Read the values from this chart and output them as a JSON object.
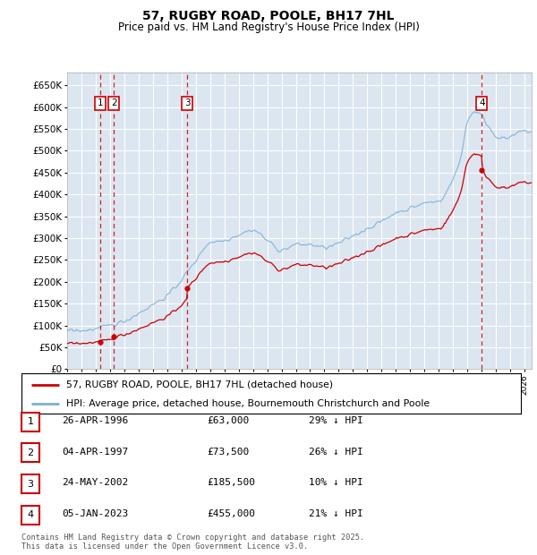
{
  "title": "57, RUGBY ROAD, POOLE, BH17 7HL",
  "subtitle": "Price paid vs. HM Land Registry's House Price Index (HPI)",
  "legend_label_red": "57, RUGBY ROAD, POOLE, BH17 7HL (detached house)",
  "legend_label_blue": "HPI: Average price, detached house, Bournemouth Christchurch and Poole",
  "transactions": [
    {
      "num": 1,
      "date_label": "26-APR-1996",
      "price": 63000,
      "pct": "29% ↓ HPI",
      "year_x": 1996.32
    },
    {
      "num": 2,
      "date_label": "04-APR-1997",
      "price": 73500,
      "pct": "26% ↓ HPI",
      "year_x": 1997.27
    },
    {
      "num": 3,
      "date_label": "24-MAY-2002",
      "price": 185500,
      "pct": "10% ↓ HPI",
      "year_x": 2002.4
    },
    {
      "num": 4,
      "date_label": "05-JAN-2023",
      "price": 455000,
      "pct": "21% ↓ HPI",
      "year_x": 2023.01
    }
  ],
  "ylim": [
    0,
    680000
  ],
  "xlim_start": 1994.0,
  "xlim_end": 2026.5,
  "yticks": [
    0,
    50000,
    100000,
    150000,
    200000,
    250000,
    300000,
    350000,
    400000,
    450000,
    500000,
    550000,
    600000,
    650000
  ],
  "ytick_labels": [
    "£0",
    "£50K",
    "£100K",
    "£150K",
    "£200K",
    "£250K",
    "£300K",
    "£350K",
    "£400K",
    "£450K",
    "£500K",
    "£550K",
    "£600K",
    "£650K"
  ],
  "plot_bg_color": "#dce6f1",
  "grid_color": "#ffffff",
  "hpi_color": "#7bafd4",
  "price_color": "#cc0000",
  "vline_color": "#cc0000",
  "footnote": "Contains HM Land Registry data © Crown copyright and database right 2025.\nThis data is licensed under the Open Government Licence v3.0."
}
